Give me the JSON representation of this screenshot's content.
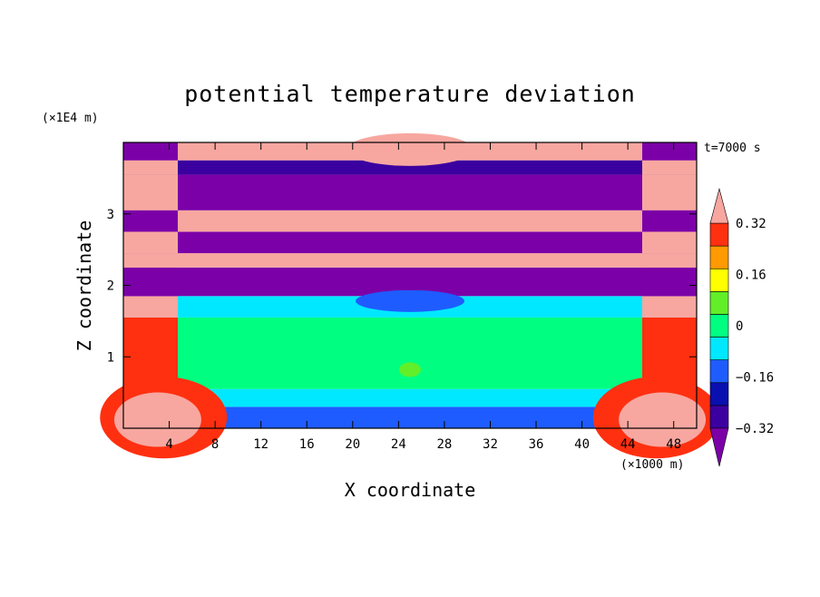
{
  "chart_data": {
    "type": "heatmap",
    "title": "potential temperature deviation",
    "time_label": "t=7000 s",
    "xlabel": "X coordinate",
    "ylabel": "Z coordinate",
    "x_unit": "(×1000 m)",
    "y_unit": "(×1E4 m)",
    "xlim": [
      0,
      50
    ],
    "ylim": [
      0,
      4
    ],
    "x_ticks": [
      "4",
      "8",
      "12",
      "16",
      "20",
      "24",
      "28",
      "32",
      "36",
      "40",
      "44",
      "48"
    ],
    "y_ticks": [
      "1",
      "2",
      "3"
    ],
    "colorbar": {
      "levels": [
        -0.4,
        -0.32,
        -0.24,
        -0.16,
        -0.08,
        0,
        0.08,
        0.16,
        0.24,
        0.32,
        0.4
      ],
      "tick_labels": [
        "0.32",
        "0.16",
        "0",
        "−0.16",
        "−0.32"
      ],
      "colors": [
        "#7b00a8",
        "#3b00a0",
        "#0a0fb0",
        "#1e5cff",
        "#00e8ff",
        "#00ff80",
        "#62ee28",
        "#ffff00",
        "#ff9a00",
        "#ff3010",
        "#f7a7a0"
      ]
    },
    "bands": [
      {
        "zmin": 0.0,
        "zmax": 0.3,
        "center": "#1e5cff",
        "edge": "#f7a7a0"
      },
      {
        "zmin": 0.3,
        "zmax": 0.55,
        "center": "#00e8ff",
        "edge": "#f7a7a0"
      },
      {
        "zmin": 0.55,
        "zmax": 1.55,
        "center": "#00ff80",
        "edge": "#ff3010"
      },
      {
        "zmin": 1.55,
        "zmax": 1.85,
        "center": "#00e8ff",
        "edge": "#f7a7a0"
      },
      {
        "zmin": 1.85,
        "zmax": 2.25,
        "center": "#7b00a8",
        "edge": "#7b00a8"
      },
      {
        "zmin": 2.25,
        "zmax": 2.45,
        "center": "#f7a7a0",
        "edge": "#f7a7a0"
      },
      {
        "zmin": 2.45,
        "zmax": 2.75,
        "center": "#7b00a8",
        "edge": "#f7a7a0"
      },
      {
        "zmin": 2.75,
        "zmax": 3.05,
        "center": "#f7a7a0",
        "edge": "#7b00a8"
      },
      {
        "zmin": 3.05,
        "zmax": 3.55,
        "center": "#7b00a8",
        "edge": "#f7a7a0"
      },
      {
        "zmin": 3.55,
        "zmax": 3.75,
        "center": "#3b00a0",
        "edge": "#f7a7a0"
      },
      {
        "zmin": 3.75,
        "zmax": 4.0,
        "center": "#f7a7a0",
        "edge": "#7b00a8"
      }
    ]
  }
}
